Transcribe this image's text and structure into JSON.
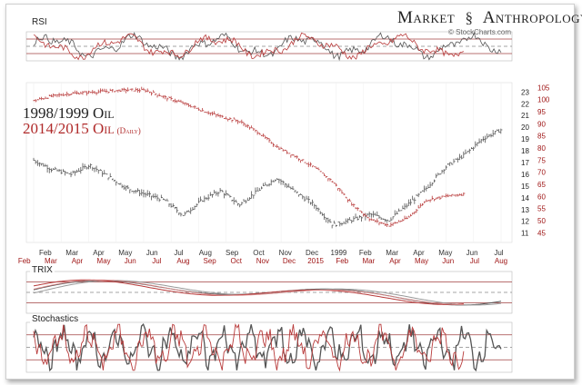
{
  "brand": {
    "title_left": "Market",
    "title_right": "Anthropology",
    "logo_icon": "helix-symbol-icon",
    "watermark": "© StockCharts.com"
  },
  "panels": {
    "rsi": "RSI",
    "trix": "TRIX",
    "stochastics": "Stochastics"
  },
  "legend": {
    "series_a": "1998/1999 Oil",
    "series_b": "2014/2015 Oil",
    "series_b_note": "(Daily)"
  },
  "colors": {
    "series_a": "#555555",
    "series_b": "#b83a3a",
    "axis_a": "#222222",
    "axis_b": "#a01818",
    "signal": "#999999"
  },
  "chart_data": {
    "type": "line",
    "right_axis_a": {
      "ticks": [
        11,
        12,
        13,
        14,
        15,
        16,
        17,
        18,
        19,
        20,
        21,
        22,
        23
      ],
      "range": [
        10.2,
        23.8
      ]
    },
    "right_axis_b": {
      "ticks": [
        45,
        50,
        55,
        60,
        65,
        70,
        75,
        80,
        85,
        90,
        95,
        100,
        105
      ],
      "range": [
        41,
        107
      ]
    },
    "x_labels_a": [
      "Feb",
      "Mar",
      "Apr",
      "May",
      "Jun",
      "Jul",
      "Aug",
      "Sep",
      "Oct",
      "Nov",
      "Dec",
      "1999",
      "Feb",
      "Mar",
      "Apr",
      "May",
      "Jun",
      "Jul"
    ],
    "x_labels_b": [
      "Feb",
      "Mar",
      "Apr",
      "May",
      "Jun",
      "Jul",
      "Aug",
      "Sep",
      "Oct",
      "Nov",
      "Dec",
      "2015",
      "Feb",
      "Mar",
      "Apr",
      "May",
      "Jun",
      "Jul",
      "Aug"
    ],
    "series": [
      {
        "name": "1998/1999 Oil",
        "x": [
          0,
          4,
          8,
          12,
          16,
          20,
          24,
          28,
          32,
          36,
          40,
          44,
          48,
          52,
          56,
          60,
          64,
          68,
          72,
          76,
          80,
          84,
          88,
          92,
          96,
          100
        ],
        "values": [
          17.2,
          16.4,
          16.0,
          16.8,
          15.8,
          14.8,
          14.3,
          13.8,
          12.5,
          13.8,
          14.6,
          13.4,
          14.6,
          15.7,
          14.5,
          13.4,
          11.7,
          12.1,
          12.6,
          12.1,
          13.4,
          14.8,
          16.6,
          17.6,
          19.0,
          19.8
        ]
      },
      {
        "name": "2014/2015 Oil",
        "x": [
          0,
          4,
          8,
          12,
          16,
          20,
          24,
          28,
          32,
          36,
          40,
          44,
          48,
          52,
          56,
          60,
          64,
          68,
          72,
          76,
          80,
          84,
          88,
          92
        ],
        "values": [
          99.5,
          101.5,
          102.5,
          103.0,
          103.5,
          104.0,
          103.8,
          101.0,
          98.5,
          95.5,
          93.0,
          91.0,
          86.5,
          80.5,
          76.5,
          72.0,
          66.0,
          57.0,
          50.5,
          48.0,
          51.0,
          58.5,
          60.0,
          61.0
        ]
      }
    ],
    "indicators": {
      "rsi": {
        "levels": [
          30,
          50,
          70
        ]
      },
      "trix": {
        "levels": [
          -1,
          0,
          1
        ]
      },
      "stochastics": {
        "levels": [
          20,
          50,
          80
        ]
      }
    },
    "grid": true,
    "legend_position": "top-left"
  }
}
